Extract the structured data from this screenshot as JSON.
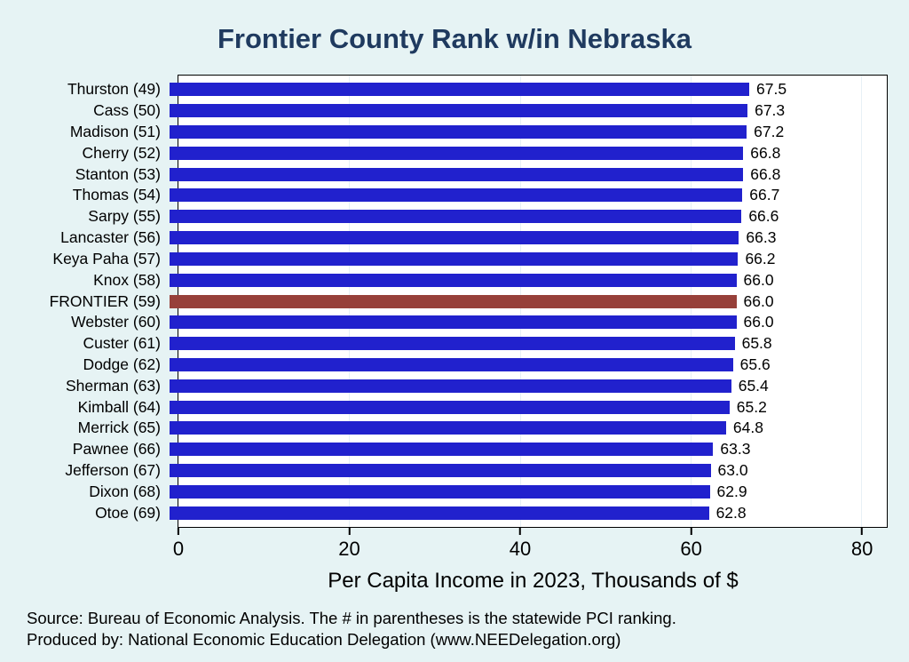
{
  "chart_data": {
    "type": "bar",
    "orientation": "horizontal",
    "title": "Frontier County Rank w/in Nebraska",
    "xlabel": "Per Capita Income in 2023, Thousands of $",
    "categories": [
      "Thurston (49)",
      "Cass (50)",
      "Madison (51)",
      "Cherry (52)",
      "Stanton (53)",
      "Thomas (54)",
      "Sarpy (55)",
      "Lancaster (56)",
      "Keya Paha (57)",
      "Knox (58)",
      "FRONTIER (59)",
      "Webster (60)",
      "Custer (61)",
      "Dodge (62)",
      "Sherman (63)",
      "Kimball (64)",
      "Merrick (65)",
      "Pawnee (66)",
      "Jefferson (67)",
      "Dixon (68)",
      "Otoe (69)"
    ],
    "values": [
      67.5,
      67.3,
      67.2,
      66.8,
      66.8,
      66.7,
      66.6,
      66.3,
      66.2,
      66.0,
      66.0,
      66.0,
      65.8,
      65.6,
      65.4,
      65.2,
      64.8,
      63.3,
      63.0,
      62.9,
      62.8
    ],
    "xlim": [
      0,
      83
    ],
    "xticks": [
      0,
      20,
      40,
      60,
      80
    ],
    "grid": "faint-vertical",
    "legend": "none",
    "highlight_category": "FRONTIER (59)",
    "colors": {
      "bar": "#2121cd",
      "highlight": "#97403a",
      "title": "#1f3a5f",
      "background": "#e6f3f4",
      "plot_background": "#ffffff",
      "text": "#000000"
    }
  },
  "footer": {
    "source_line": "Source: Bureau of Economic Analysis. The # in parentheses is the statewide PCI ranking.",
    "produced_line": "Produced by: National Economic Education Delegation (www.NEEDelegation.org)"
  }
}
